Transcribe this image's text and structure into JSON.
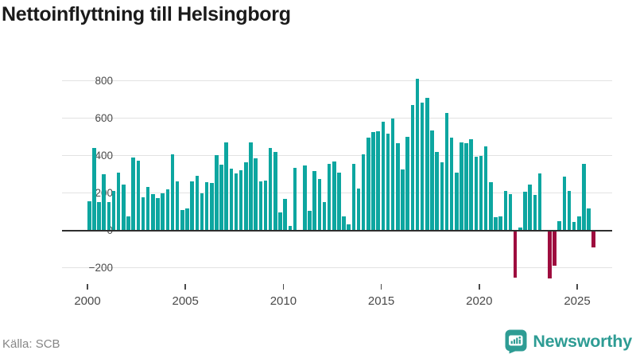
{
  "title": "Nettoinflyttning till Helsingborg",
  "source": "Källa: SCB",
  "logo": {
    "text": "Newsworthy"
  },
  "colors": {
    "bar_positive": "#0da6a0",
    "bar_negative": "#9e0c3e",
    "title_text": "#1a1a1a",
    "axis_text": "#4a4a4a",
    "grid": "#e2e2e2",
    "zero_line": "#2f2f2f",
    "source_text": "#868686",
    "logo_teal": "#2e9c94"
  },
  "chart_data": {
    "type": "bar",
    "title": "Nettoinflyttning till Helsingborg",
    "frequency": "quarterly",
    "start": {
      "year": 2000,
      "quarter": 1
    },
    "end": {
      "year": 2025,
      "quarter": 4
    },
    "y_ticks": [
      800,
      600,
      400,
      200,
      0,
      -200
    ],
    "x_tick_years": [
      2000,
      2005,
      2010,
      2015,
      2020,
      2025
    ],
    "ylim": [
      -260,
      830
    ],
    "grid": "horizontal",
    "legend": "none",
    "years": [
      {
        "year": 2000,
        "q": [
          152,
          440,
          148,
          300
        ]
      },
      {
        "year": 2001,
        "q": [
          148,
          209,
          307,
          241
        ]
      },
      {
        "year": 2002,
        "q": [
          72,
          386,
          369,
          175
        ]
      },
      {
        "year": 2003,
        "q": [
          230,
          192,
          169,
          196
        ]
      },
      {
        "year": 2004,
        "q": [
          217,
          404,
          260,
          108
        ]
      },
      {
        "year": 2005,
        "q": [
          115,
          260,
          290,
          195
        ]
      },
      {
        "year": 2006,
        "q": [
          254,
          252,
          399,
          349
        ]
      },
      {
        "year": 2007,
        "q": [
          470,
          328,
          302,
          321
        ]
      },
      {
        "year": 2008,
        "q": [
          363,
          470,
          383,
          258
        ]
      },
      {
        "year": 2009,
        "q": [
          263,
          437,
          419,
          94
        ]
      },
      {
        "year": 2010,
        "q": [
          166,
          21,
          332,
          0
        ]
      },
      {
        "year": 2011,
        "q": [
          345,
          102,
          314,
          274
        ]
      },
      {
        "year": 2012,
        "q": [
          149,
          352,
          368,
          305
        ]
      },
      {
        "year": 2013,
        "q": [
          72,
          31,
          352,
          220
        ]
      },
      {
        "year": 2014,
        "q": [
          403,
          494,
          524,
          528
        ]
      },
      {
        "year": 2015,
        "q": [
          579,
          515,
          595,
          464
        ]
      },
      {
        "year": 2016,
        "q": [
          324,
          498,
          667,
          808
        ]
      },
      {
        "year": 2017,
        "q": [
          680,
          708,
          532,
          419
        ]
      },
      {
        "year": 2018,
        "q": [
          363,
          626,
          494,
          307
        ]
      },
      {
        "year": 2019,
        "q": [
          470,
          463,
          484,
          393
        ]
      },
      {
        "year": 2020,
        "q": [
          396,
          447,
          254,
          70
        ]
      },
      {
        "year": 2021,
        "q": [
          74,
          207,
          192,
          -245
        ]
      },
      {
        "year": 2022,
        "q": [
          14,
          204,
          244,
          187
        ]
      },
      {
        "year": 2023,
        "q": [
          301,
          0,
          -250,
          -185
        ]
      },
      {
        "year": 2024,
        "q": [
          45,
          285,
          207,
          43
        ]
      },
      {
        "year": 2025,
        "q": [
          72,
          355,
          115,
          -85
        ]
      }
    ]
  }
}
